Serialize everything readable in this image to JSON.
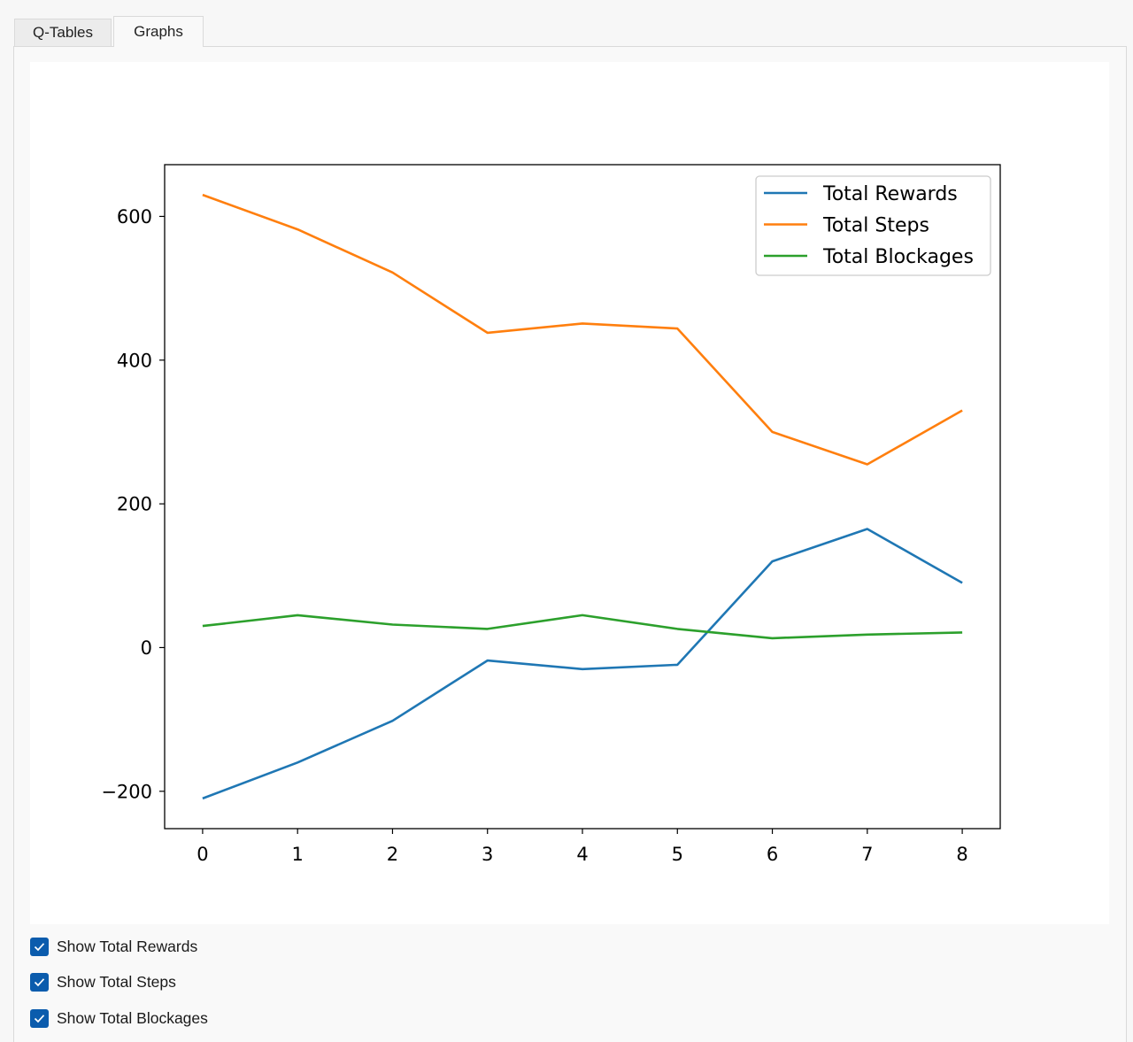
{
  "tabs": [
    {
      "label": "Q-Tables",
      "active": false
    },
    {
      "label": "Graphs",
      "active": true
    }
  ],
  "checkboxes": [
    {
      "label": "Show Total Rewards",
      "checked": true
    },
    {
      "label": "Show Total Steps",
      "checked": true
    },
    {
      "label": "Show Total Blockages",
      "checked": true
    }
  ],
  "icons": {
    "checkbox_check": "checkmark-icon"
  },
  "colors": {
    "accent": "#0b5cad"
  },
  "chart_data": {
    "type": "line",
    "title": "",
    "xlabel": "",
    "ylabel": "",
    "x": [
      0,
      1,
      2,
      3,
      4,
      5,
      6,
      7,
      8
    ],
    "xticks": [
      "0",
      "1",
      "2",
      "3",
      "4",
      "5",
      "6",
      "7",
      "8"
    ],
    "yticks": [
      "−200",
      "0",
      "200",
      "400",
      "600"
    ],
    "ytick_values": [
      -200,
      0,
      200,
      400,
      600
    ],
    "xlim": [
      -0.4,
      8.4
    ],
    "ylim": [
      -252,
      672
    ],
    "grid": false,
    "legend_position": "top-right",
    "series": [
      {
        "name": "Total Rewards",
        "color": "#1f77b4",
        "values": [
          -210,
          -160,
          -102,
          -18,
          -30,
          -24,
          120,
          165,
          90
        ]
      },
      {
        "name": "Total Steps",
        "color": "#ff7f0e",
        "values": [
          630,
          582,
          522,
          438,
          451,
          444,
          300,
          255,
          330
        ]
      },
      {
        "name": "Total Blockages",
        "color": "#2ca02c",
        "values": [
          30,
          45,
          32,
          26,
          45,
          26,
          13,
          18,
          21
        ]
      }
    ]
  }
}
